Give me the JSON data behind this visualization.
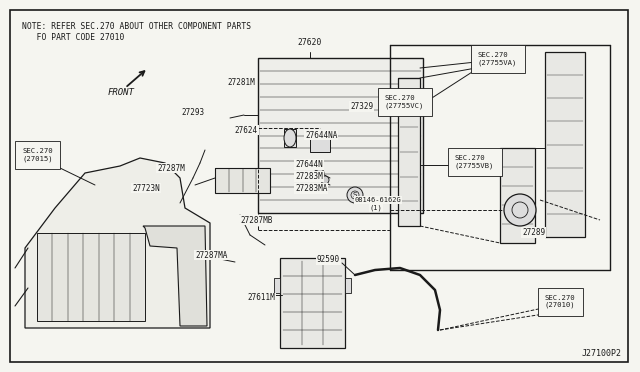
{
  "bg_color": "#f5f5f0",
  "line_color": "#1a1a1a",
  "text_color": "#1a1a1a",
  "note_line1": "NOTE: REFER SEC.270 ABOUT OTHER COMPONENT PARTS",
  "note_line2": "   FO PART CODE 27010",
  "diagram_id": "J27100P2",
  "front_text": "FRONT",
  "border_lw": 1.2,
  "part_fontsize": 5.5,
  "sec_fontsize": 5.5
}
